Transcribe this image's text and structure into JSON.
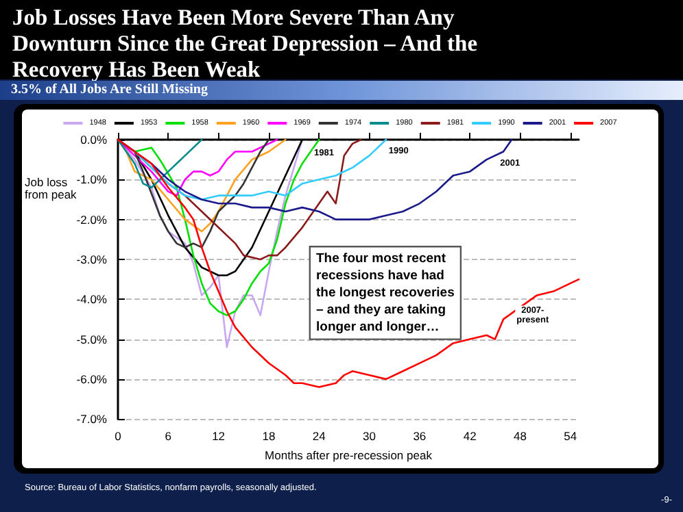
{
  "chart_data": {
    "type": "line",
    "title": "Job Losses Have Been More Severe Than Any Downturn Since the Great Depression – And the Recovery Has Been Weak",
    "subtitle": "3.5% of All Jobs Are Still Missing",
    "xlabel": "Months after pre-recession peak",
    "ylabel": "Job loss\nfrom peak",
    "xlim": [
      0,
      55
    ],
    "xticks": [
      0,
      6,
      12,
      18,
      24,
      30,
      36,
      42,
      48,
      54
    ],
    "ylim": [
      -7,
      0
    ],
    "yticks": [
      {
        "value": -7,
        "label": "-7.0%"
      },
      {
        "value": -6,
        "label": "-6.0%"
      },
      {
        "value": -5,
        "label": "-5.0%"
      },
      {
        "value": -4,
        "label": "-4.0%"
      },
      {
        "value": -3,
        "label": "-3.0%"
      },
      {
        "value": -2,
        "label": "-2.0%"
      },
      {
        "value": -1,
        "label": "-1.0%"
      },
      {
        "value": 0,
        "label": "0.0%"
      }
    ],
    "grid": "y",
    "legend": "top",
    "marker": "none",
    "line_style": "solid",
    "series": [
      {
        "name": "1948",
        "color": "#c8a8f0",
        "x": [
          0,
          2,
          4,
          5,
          6,
          8,
          9,
          10,
          11,
          12,
          13,
          14,
          15,
          16,
          17,
          18,
          19,
          20,
          21,
          22
        ],
        "values": [
          0,
          -0.5,
          -1.2,
          -1.9,
          -2.3,
          -2.6,
          -3.1,
          -3.9,
          -3.7,
          -3.4,
          -5.2,
          -4.3,
          -3.9,
          -3.9,
          -4.4,
          -3.3,
          -2.3,
          -1.4,
          -0.7,
          0
        ]
      },
      {
        "name": "1953",
        "color": "#000000",
        "x": [
          0,
          2,
          4,
          6,
          8,
          10,
          12,
          13,
          14,
          16,
          18,
          20,
          22
        ],
        "values": [
          0,
          -0.3,
          -1.0,
          -1.9,
          -2.7,
          -3.2,
          -3.4,
          -3.4,
          -3.3,
          -2.7,
          -1.8,
          -0.9,
          0
        ]
      },
      {
        "name": "1958",
        "color": "#00e000",
        "x": [
          0,
          2,
          4,
          5,
          7,
          8,
          9,
          10,
          11,
          12,
          13,
          14,
          15,
          16,
          17,
          18,
          19,
          20,
          21,
          22,
          24
        ],
        "values": [
          0,
          -0.3,
          -0.2,
          -0.5,
          -1.2,
          -2.0,
          -2.9,
          -3.6,
          -4.1,
          -4.3,
          -4.4,
          -4.3,
          -4.0,
          -3.6,
          -3.3,
          -3.1,
          -2.5,
          -1.6,
          -1.0,
          -0.6,
          0
        ]
      },
      {
        "name": "1960",
        "color": "#ffa020",
        "x": [
          0,
          1,
          2,
          4,
          6,
          8,
          10,
          11,
          12,
          14,
          16,
          18,
          20
        ],
        "values": [
          0,
          -0.3,
          -0.8,
          -1.0,
          -1.5,
          -2.0,
          -2.3,
          -2.1,
          -1.8,
          -1.0,
          -0.5,
          -0.3,
          0
        ]
      },
      {
        "name": "1969",
        "color": "#ff00ff",
        "x": [
          0,
          2,
          4,
          6,
          7,
          8,
          9,
          10,
          11,
          12,
          13,
          14,
          16,
          18,
          19
        ],
        "values": [
          0,
          -0.4,
          -0.8,
          -1.3,
          -1.4,
          -1.0,
          -0.8,
          -0.8,
          -0.9,
          -0.8,
          -0.5,
          -0.3,
          -0.3,
          -0.1,
          0
        ]
      },
      {
        "name": "1974",
        "color": "#333333",
        "x": [
          0,
          2,
          3,
          5,
          6,
          7,
          8,
          9,
          10,
          11,
          12,
          13,
          14,
          15,
          16,
          17,
          18
        ],
        "values": [
          0,
          -0.3,
          -0.8,
          -1.9,
          -2.3,
          -2.6,
          -2.7,
          -2.6,
          -2.7,
          -2.3,
          -1.8,
          -1.6,
          -1.4,
          -1.1,
          -0.7,
          -0.3,
          0
        ]
      },
      {
        "name": "1980",
        "color": "#008b8b",
        "x": [
          0,
          2,
          3,
          4,
          6,
          8,
          10
        ],
        "values": [
          0,
          -0.6,
          -1.1,
          -1.2,
          -0.8,
          -0.4,
          0
        ]
      },
      {
        "name": "1981",
        "color": "#8b1a1a",
        "x": [
          0,
          2,
          4,
          6,
          8,
          10,
          12,
          14,
          15,
          17,
          18,
          19,
          20,
          22,
          24,
          25,
          26,
          27,
          28,
          29
        ],
        "values": [
          0,
          -0.3,
          -0.7,
          -1.1,
          -1.4,
          -1.8,
          -2.2,
          -2.6,
          -2.9,
          -3.0,
          -2.9,
          -2.9,
          -2.7,
          -2.2,
          -1.6,
          -1.3,
          -1.6,
          -0.4,
          -0.1,
          0
        ]
      },
      {
        "name": "1990",
        "color": "#33ccff",
        "x": [
          0,
          2,
          4,
          6,
          8,
          10,
          12,
          14,
          16,
          18,
          20,
          22,
          24,
          26,
          28,
          30,
          32
        ],
        "values": [
          0,
          -0.3,
          -0.7,
          -1.1,
          -1.4,
          -1.5,
          -1.4,
          -1.4,
          -1.4,
          -1.3,
          -1.4,
          -1.1,
          -1.0,
          -0.9,
          -0.7,
          -0.4,
          0
        ]
      },
      {
        "name": "2001",
        "color": "#1a1a8b",
        "x": [
          0,
          2,
          4,
          6,
          8,
          10,
          12,
          14,
          16,
          18,
          20,
          22,
          24,
          26,
          28,
          30,
          32,
          34,
          36,
          38,
          40,
          42,
          44,
          46,
          47
        ],
        "values": [
          0,
          -0.3,
          -0.6,
          -1.0,
          -1.3,
          -1.5,
          -1.6,
          -1.6,
          -1.7,
          -1.7,
          -1.8,
          -1.7,
          -1.8,
          -2.0,
          -2.0,
          -2.0,
          -1.9,
          -1.8,
          -1.6,
          -1.3,
          -0.9,
          -0.8,
          -0.5,
          -0.3,
          0
        ]
      },
      {
        "name": "2007",
        "color": "#ff0000",
        "x": [
          0,
          2,
          4,
          6,
          8,
          9,
          10,
          11,
          12,
          13,
          14,
          16,
          18,
          20,
          21,
          22,
          24,
          26,
          27,
          28,
          30,
          32,
          34,
          36,
          38,
          40,
          42,
          44,
          45,
          46,
          48,
          50,
          52,
          54,
          55
        ],
        "values": [
          0,
          -0.3,
          -0.6,
          -1.2,
          -1.7,
          -2.0,
          -2.7,
          -3.3,
          -3.8,
          -4.3,
          -4.7,
          -5.2,
          -5.6,
          -5.9,
          -6.1,
          -6.1,
          -6.2,
          -6.1,
          -5.9,
          -5.8,
          -5.9,
          -6.0,
          -5.8,
          -5.6,
          -5.4,
          -5.1,
          -5.0,
          -4.9,
          -5.0,
          -4.5,
          -4.2,
          -3.9,
          -3.8,
          -3.6,
          -3.5
        ]
      }
    ],
    "annotations": [
      "1981",
      "1990",
      "2001",
      "2007-\npresent",
      "The four most recent\nrecessions have had\nthe longest recoveries\n– and they are taking\nlonger and longer…",
      "Source: Bureau of Labor Statistics, nonfarm payrolls, seasonally adjusted.",
      "-9-"
    ]
  }
}
